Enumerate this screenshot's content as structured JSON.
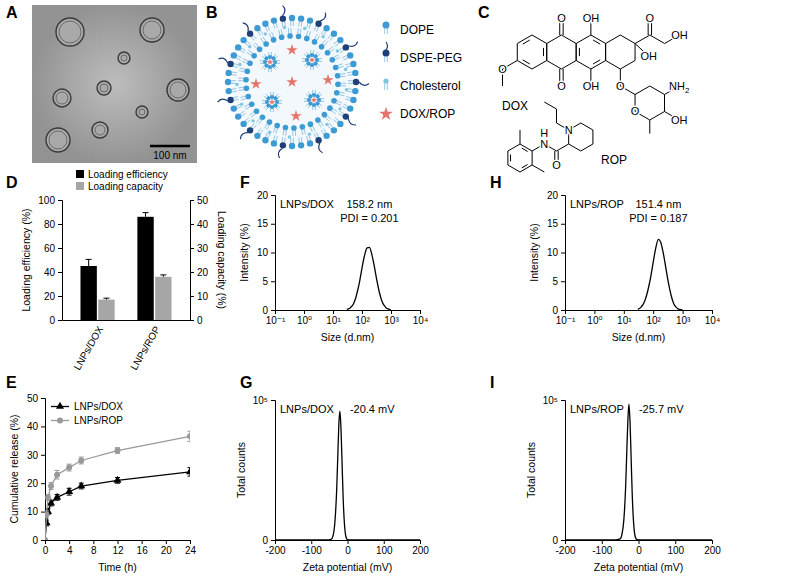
{
  "image": {
    "label": "A",
    "scale_bar": "100 nm"
  },
  "diagram": {
    "label": "B",
    "legend": [
      {
        "name": "DOPE",
        "color": "#3d9bd4"
      },
      {
        "name": "DSPE-PEG",
        "color": "#1f3f78"
      },
      {
        "name": "Cholesterol",
        "color": "#7fc6dc"
      },
      {
        "name": "DOX/ROP",
        "color": "#e5736b"
      }
    ]
  },
  "structures": {
    "label": "C",
    "molecules": [
      {
        "name": "DOX",
        "atoms": [
          "O",
          "O",
          "OH",
          "OH",
          "O",
          "O",
          "OH",
          "OH",
          "O",
          "O",
          "NH2",
          "OH"
        ]
      },
      {
        "name": "ROP",
        "atoms": [
          "H",
          "N",
          "O",
          "N"
        ]
      }
    ]
  },
  "chart_data": [
    {
      "label": "D",
      "type": "bar",
      "categories": [
        "LNPs/DOX",
        "LNPs/ROP"
      ],
      "series": [
        {
          "name": "Loading efficiency",
          "color": "#000000",
          "values": [
            45,
            86
          ],
          "errors": [
            5.5,
            3.5
          ]
        },
        {
          "name": "Loading capacity",
          "color": "#a6a6a6",
          "axis": "y2",
          "values": [
            8.5,
            18
          ],
          "errors": [
            0.6,
            0.8
          ]
        }
      ],
      "ylabel": "Loading efficiency (%)",
      "y2label": "Loading capacity (%)",
      "ylim": [
        0,
        100
      ],
      "yticks": [
        0,
        20,
        40,
        60,
        80,
        100
      ],
      "y2lim": [
        0,
        50
      ],
      "y2ticks": [
        0,
        10,
        20,
        30,
        40,
        50
      ],
      "legend": "top"
    },
    {
      "label": "E",
      "type": "line",
      "x": [
        0,
        0.25,
        0.5,
        1,
        2,
        4,
        6,
        12,
        24
      ],
      "series": [
        {
          "name": "LNPs/DOX",
          "color": "#000000",
          "marker": "triangle",
          "values": [
            0,
            6,
            10,
            13,
            15,
            17,
            19,
            21,
            24
          ],
          "errors": [
            0,
            1,
            1,
            1,
            1,
            1.2,
            1,
            1,
            1.5
          ]
        },
        {
          "name": "LNPs/ROP",
          "color": "#999999",
          "marker": "circle",
          "values": [
            0,
            9,
            15,
            19,
            23,
            25.5,
            28,
            31.5,
            36.5
          ],
          "errors": [
            0,
            1.2,
            1,
            1.2,
            1.5,
            1.2,
            1.2,
            1,
            1.8
          ]
        }
      ],
      "xlabel": "Time (h)",
      "ylabel": "Cumulative release (%)",
      "xlim": [
        0,
        24
      ],
      "xticks": [
        0,
        4,
        8,
        12,
        16,
        20,
        24
      ],
      "ylim": [
        0,
        50
      ],
      "yticks": [
        0,
        10,
        20,
        30,
        40,
        50
      ],
      "legend": "top-left"
    },
    {
      "label": "F",
      "type": "line",
      "log": "x",
      "color": "#000000",
      "x": [
        30,
        40,
        50,
        60,
        70,
        80,
        100,
        120,
        150,
        180,
        220,
        270,
        330,
        400,
        500,
        600,
        700,
        800,
        1000
      ],
      "values": [
        0.1,
        0.4,
        1.0,
        2.0,
        3.3,
        4.6,
        7.3,
        9.3,
        10.8,
        10.9,
        9.6,
        7.4,
        5.0,
        3.0,
        1.4,
        0.7,
        0.3,
        0.2,
        0
      ],
      "xlabel": "Size (d.nm)",
      "ylabel": "Intensity (%)",
      "xlim": [
        0.1,
        10000
      ],
      "xticks": [
        {
          "value": 0.1,
          "label": "10⁻¹"
        },
        {
          "value": 1,
          "label": "10⁰"
        },
        {
          "value": 10,
          "label": "10¹"
        },
        {
          "value": 100,
          "label": "10²"
        },
        {
          "value": 1000,
          "label": "10³"
        },
        {
          "value": 10000,
          "label": "10⁴"
        }
      ],
      "ylim": [
        0,
        20
      ],
      "yticks": [
        0,
        5,
        10,
        15,
        20
      ],
      "annotations": [
        "LNPs/DOX",
        "158.2 nm",
        "PDI = 0.201"
      ]
    },
    {
      "label": "G",
      "type": "line",
      "color": "#000000",
      "x": [
        -200,
        -60,
        -45,
        -40,
        -35,
        -30,
        -27,
        -24,
        -21,
        -18,
        -15,
        -12,
        -8,
        -4,
        0,
        10,
        200
      ],
      "values": [
        0,
        0,
        500,
        3000,
        12000,
        35000,
        58000,
        82000,
        92000,
        80000,
        55000,
        30000,
        10000,
        2000,
        300,
        0,
        0
      ],
      "xlabel": "Zeta potential (mV)",
      "ylabel": "Total counts",
      "xlim": [
        -200,
        200
      ],
      "xticks": [
        -200,
        -100,
        0,
        100,
        200
      ],
      "ylim": [
        0,
        100000
      ],
      "yticks": [
        0,
        {
          "value": 100000,
          "label": "10⁵"
        }
      ],
      "annotations": [
        "LNPs/DOX",
        "-20.4 mV"
      ]
    },
    {
      "label": "H",
      "type": "line",
      "log": "x",
      "color": "#000000",
      "x": [
        30,
        40,
        50,
        60,
        70,
        80,
        100,
        120,
        150,
        180,
        220,
        270,
        330,
        400,
        500,
        600,
        700,
        800,
        1000
      ],
      "values": [
        0.1,
        0.6,
        1.4,
        2.6,
        4.0,
        5.4,
        8.3,
        10.6,
        12.3,
        11.8,
        9.9,
        7.3,
        4.7,
        2.7,
        1.1,
        0.5,
        0.2,
        0.1,
        0
      ],
      "xlabel": "Size (d.nm)",
      "ylabel": "Intensity (%)",
      "xlim": [
        0.1,
        10000
      ],
      "xticks": [
        {
          "value": 0.1,
          "label": "10⁻¹"
        },
        {
          "value": 1,
          "label": "10⁰"
        },
        {
          "value": 10,
          "label": "10¹"
        },
        {
          "value": 100,
          "label": "10²"
        },
        {
          "value": 1000,
          "label": "10³"
        },
        {
          "value": 10000,
          "label": "10⁴"
        }
      ],
      "ylim": [
        0,
        20
      ],
      "yticks": [
        0,
        5,
        10,
        15,
        20
      ],
      "annotations": [
        "LNPs/ROP",
        "151.4 nm",
        "PDI = 0.187"
      ]
    },
    {
      "label": "I",
      "type": "line",
      "color": "#000000",
      "x": [
        -200,
        -65,
        -50,
        -45,
        -40,
        -35,
        -32,
        -29,
        -26,
        -23,
        -20,
        -17,
        -13,
        -9,
        -5,
        5,
        200
      ],
      "values": [
        0,
        0,
        800,
        4000,
        14000,
        38000,
        62000,
        85000,
        97000,
        84000,
        58000,
        32000,
        11000,
        2500,
        400,
        0,
        0
      ],
      "xlabel": "Zeta potential (mV)",
      "ylabel": "Total counts",
      "xlim": [
        -200,
        200
      ],
      "xticks": [
        -200,
        -100,
        0,
        100,
        200
      ],
      "ylim": [
        0,
        100000
      ],
      "yticks": [
        0,
        {
          "value": 100000,
          "label": "10⁵"
        }
      ],
      "annotations": [
        "LNPs/ROP",
        "-25.7 mV"
      ]
    }
  ]
}
